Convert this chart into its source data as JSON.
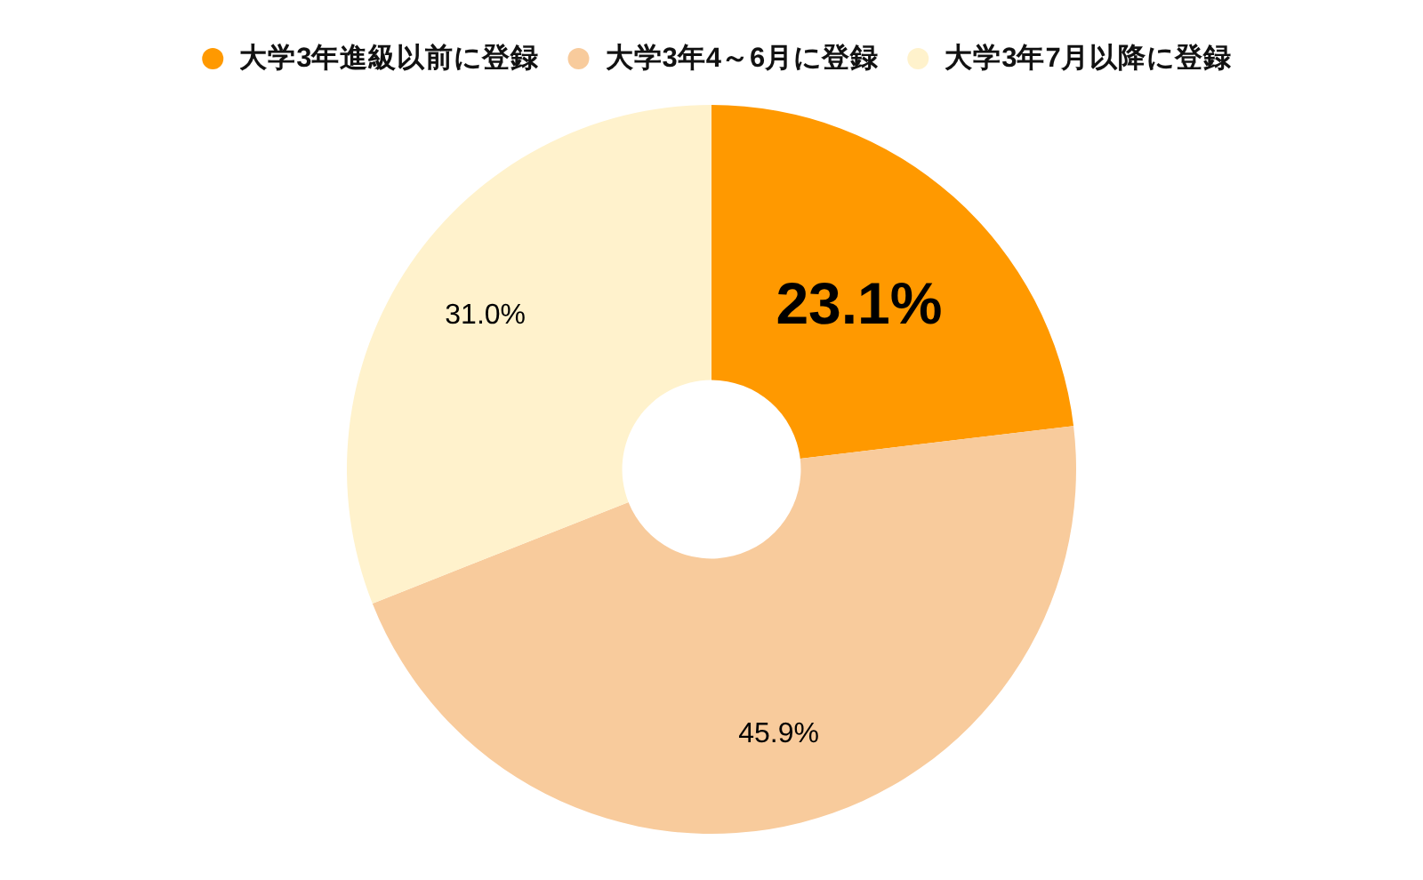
{
  "chart_data": {
    "type": "donut",
    "categories": [
      "大学3年進級以前に登録",
      "大学3年4～6月に登録",
      "大学3年7月以降に登録"
    ],
    "values": [
      23.1,
      45.9,
      31.0
    ],
    "colors": [
      "#ff9900",
      "#f8cb9c",
      "#fff2cc"
    ],
    "value_labels": [
      "23.1%",
      "45.9%",
      "31.0%"
    ],
    "legend": "top"
  }
}
